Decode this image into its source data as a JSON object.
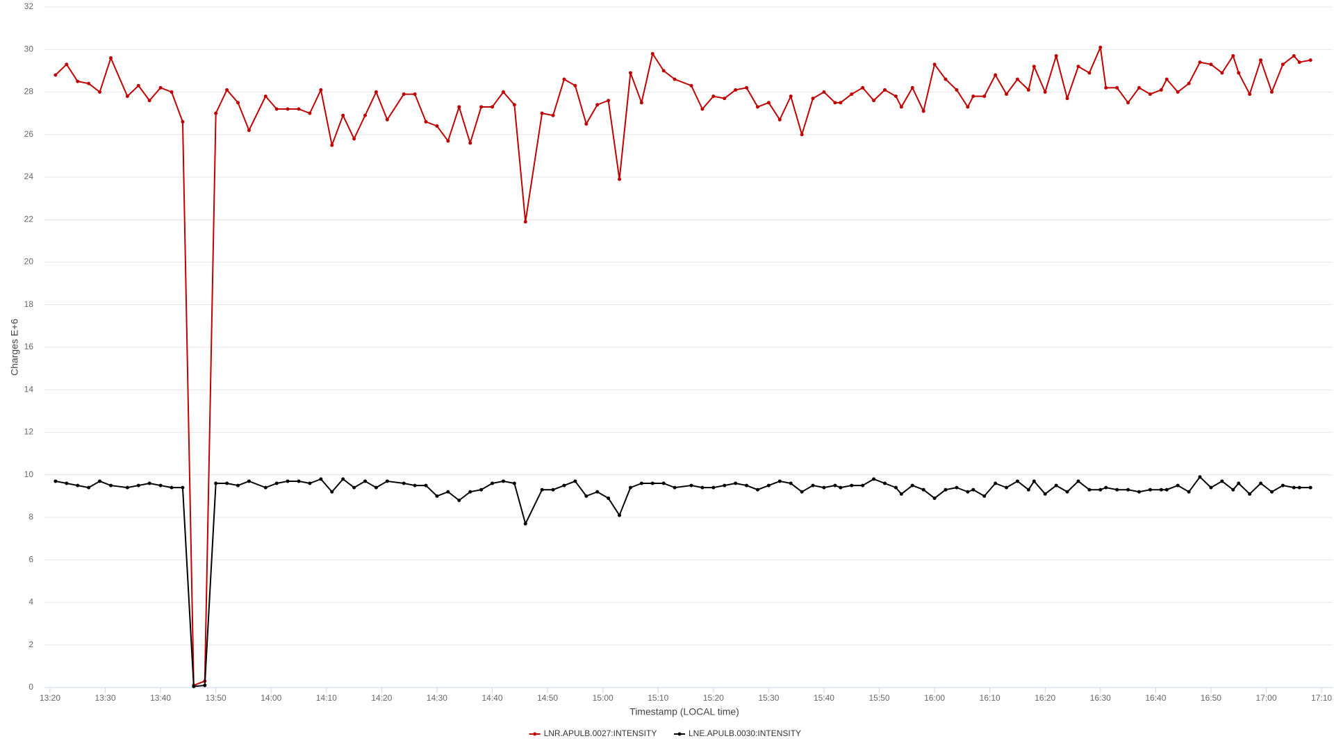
{
  "chart_data": {
    "type": "line",
    "x_label": "Timestamp (LOCAL time)",
    "y_label": "Charges E+6",
    "x": [
      801,
      803,
      805,
      807,
      809,
      811,
      814,
      816,
      818,
      820,
      822,
      824,
      826,
      828,
      830,
      832,
      834,
      836,
      839,
      841,
      843,
      845,
      847,
      849,
      851,
      853,
      855,
      857,
      859,
      861,
      864,
      866,
      868,
      870,
      872,
      874,
      876,
      878,
      880,
      882,
      884,
      886,
      889,
      891,
      893,
      895,
      897,
      899,
      901,
      903,
      905,
      907,
      909,
      911,
      913,
      916,
      918,
      920,
      922,
      924,
      926,
      928,
      930,
      932,
      934,
      936,
      938,
      940,
      942,
      943,
      945,
      947,
      949,
      951,
      953,
      954,
      956,
      958,
      960,
      962,
      964,
      966,
      967,
      969,
      971,
      973,
      975,
      977,
      978,
      980,
      982,
      984,
      986,
      988,
      990,
      991,
      993,
      995,
      997,
      999,
      1001,
      1002,
      1004,
      1006,
      1008,
      1010,
      1012,
      1014,
      1015,
      1017,
      1019,
      1021,
      1023,
      1025,
      1026,
      1028
    ],
    "series": [
      {
        "name": "LNR.APULB.0027:INTENSITY",
        "color": "#c00000",
        "values": [
          28.8,
          29.3,
          28.5,
          28.4,
          28.0,
          29.6,
          27.8,
          28.3,
          27.6,
          28.2,
          28.0,
          26.6,
          0.1,
          0.3,
          27.0,
          28.1,
          27.5,
          26.2,
          27.8,
          27.2,
          27.2,
          27.2,
          27.0,
          28.1,
          25.5,
          26.9,
          25.8,
          26.9,
          28.0,
          26.7,
          27.9,
          27.9,
          26.6,
          26.4,
          25.7,
          27.3,
          25.6,
          27.3,
          27.3,
          28.0,
          27.4,
          21.9,
          27.0,
          26.9,
          28.6,
          28.3,
          26.5,
          27.4,
          27.6,
          23.9,
          28.9,
          27.5,
          29.8,
          29.0,
          28.6,
          28.3,
          27.2,
          27.8,
          27.7,
          28.1,
          28.2,
          27.3,
          27.5,
          26.7,
          27.8,
          26.0,
          27.7,
          28.0,
          27.5,
          27.5,
          27.9,
          28.2,
          27.6,
          28.1,
          27.8,
          27.3,
          28.2,
          27.1,
          29.3,
          28.6,
          28.1,
          27.3,
          27.8,
          27.8,
          28.8,
          27.9,
          28.6,
          28.1,
          29.2,
          28.0,
          29.7,
          27.7,
          29.2,
          28.9,
          30.1,
          28.2,
          28.2,
          27.5,
          28.2,
          27.9,
          28.1,
          28.6,
          28.0,
          28.4,
          29.4,
          29.3,
          28.9,
          29.7,
          28.9,
          27.9,
          29.5,
          28.0,
          29.3,
          29.7,
          29.4,
          29.5
        ]
      },
      {
        "name": "LNE.APULB.0030:INTENSITY",
        "color": "#000000",
        "values": [
          9.7,
          9.6,
          9.5,
          9.4,
          9.7,
          9.5,
          9.4,
          9.5,
          9.6,
          9.5,
          9.4,
          9.4,
          0.05,
          0.1,
          9.6,
          9.6,
          9.5,
          9.7,
          9.4,
          9.6,
          9.7,
          9.7,
          9.6,
          9.8,
          9.2,
          9.8,
          9.4,
          9.7,
          9.4,
          9.7,
          9.6,
          9.5,
          9.5,
          9.0,
          9.2,
          8.8,
          9.2,
          9.3,
          9.6,
          9.7,
          9.6,
          7.7,
          9.3,
          9.3,
          9.5,
          9.7,
          9.0,
          9.2,
          8.9,
          8.1,
          9.4,
          9.6,
          9.6,
          9.6,
          9.4,
          9.5,
          9.4,
          9.4,
          9.5,
          9.6,
          9.5,
          9.3,
          9.5,
          9.7,
          9.6,
          9.2,
          9.5,
          9.4,
          9.5,
          9.4,
          9.5,
          9.5,
          9.8,
          9.6,
          9.4,
          9.1,
          9.5,
          9.3,
          8.9,
          9.3,
          9.4,
          9.2,
          9.3,
          9.0,
          9.6,
          9.4,
          9.7,
          9.3,
          9.7,
          9.1,
          9.5,
          9.2,
          9.7,
          9.3,
          9.3,
          9.4,
          9.3,
          9.3,
          9.2,
          9.3,
          9.3,
          9.3,
          9.5,
          9.2,
          9.9,
          9.4,
          9.7,
          9.3,
          9.6,
          9.1,
          9.6,
          9.2,
          9.5,
          9.4,
          9.4,
          9.4
        ]
      }
    ],
    "xlim": [
      799,
      1032
    ],
    "xticks": [
      {
        "value": 800,
        "label": "13:20"
      },
      {
        "value": 810,
        "label": "13:30"
      },
      {
        "value": 820,
        "label": "13:40"
      },
      {
        "value": 830,
        "label": "13:50"
      },
      {
        "value": 840,
        "label": "14:00"
      },
      {
        "value": 850,
        "label": "14:10"
      },
      {
        "value": 860,
        "label": "14:20"
      },
      {
        "value": 870,
        "label": "14:30"
      },
      {
        "value": 880,
        "label": "14:40"
      },
      {
        "value": 890,
        "label": "14:50"
      },
      {
        "value": 900,
        "label": "15:00"
      },
      {
        "value": 910,
        "label": "15:10"
      },
      {
        "value": 920,
        "label": "15:20"
      },
      {
        "value": 930,
        "label": "15:30"
      },
      {
        "value": 940,
        "label": "15:40"
      },
      {
        "value": 950,
        "label": "15:50"
      },
      {
        "value": 960,
        "label": "16:00"
      },
      {
        "value": 970,
        "label": "16:10"
      },
      {
        "value": 980,
        "label": "16:20"
      },
      {
        "value": 990,
        "label": "16:30"
      },
      {
        "value": 1000,
        "label": "16:40"
      },
      {
        "value": 1010,
        "label": "16:50"
      },
      {
        "value": 1020,
        "label": "17:00"
      },
      {
        "value": 1030,
        "label": "17:10"
      }
    ],
    "ylim": [
      0,
      32
    ],
    "yticks": [
      0,
      2,
      4,
      6,
      8,
      10,
      12,
      14,
      16,
      18,
      20,
      22,
      24,
      26,
      28,
      30,
      32
    ],
    "grid": true,
    "legend": "bottom"
  }
}
